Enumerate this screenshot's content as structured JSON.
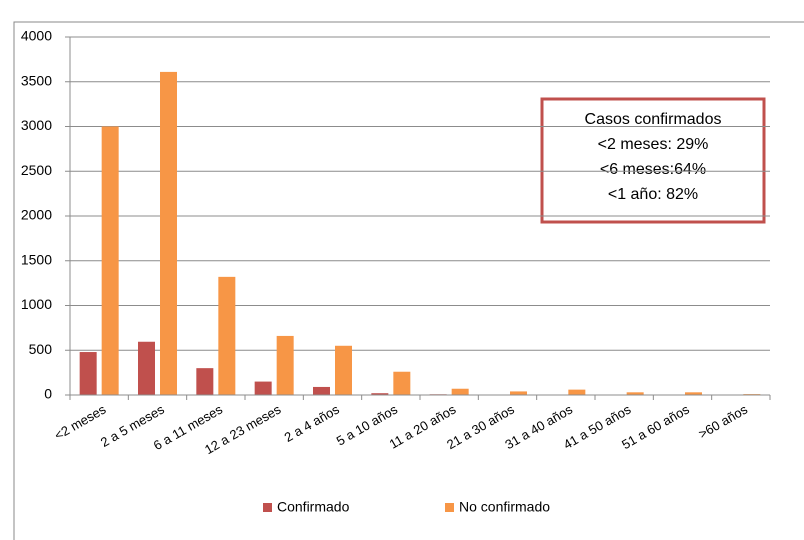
{
  "chart_data": {
    "type": "bar",
    "categories": [
      "<2 meses",
      "2 a 5 meses",
      "6 a 11 meses",
      "12 a 23 meses",
      "2 a 4 años",
      "5 a 10 años",
      "11 a 20 años",
      "21 a 30 años",
      "31 a 40 años",
      "41 a 50 años",
      "51 a 60 años",
      ">60 años"
    ],
    "series": [
      {
        "name": "Confirmado",
        "color": "#c0504d",
        "values": [
          480,
          595,
          300,
          150,
          90,
          20,
          8,
          5,
          5,
          5,
          5,
          5
        ]
      },
      {
        "name": "No confirmado",
        "color": "#f79646",
        "values": [
          3000,
          3610,
          1320,
          660,
          550,
          260,
          70,
          40,
          60,
          30,
          30,
          10
        ]
      }
    ],
    "ylim": [
      0,
      4000
    ],
    "yticks": [
      0,
      500,
      1000,
      1500,
      2000,
      2500,
      3000,
      3500,
      4000
    ],
    "grid": true,
    "legend": "bottom",
    "annotation": [
      "Casos confirmados",
      "<2 meses: 29%",
      "<6 meses:64%",
      "<1 año: 82%"
    ]
  }
}
